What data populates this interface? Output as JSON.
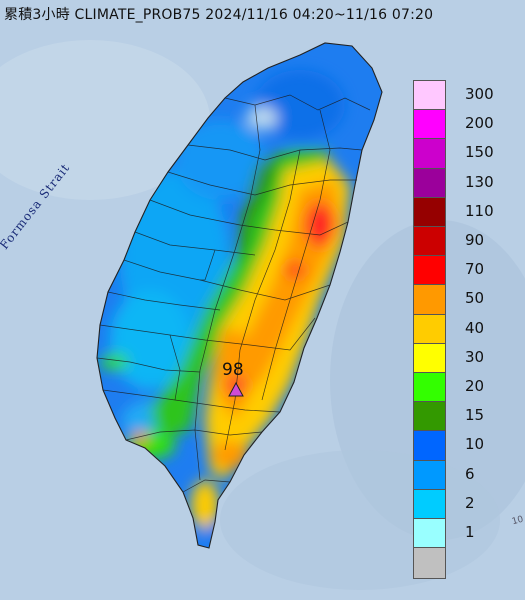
{
  "title": "累積3小時 CLIMATE_PROB75 2024/11/16 04:20~11/16 07:20",
  "sea_label": "Formosa Strait",
  "peak": {
    "value": "98",
    "marker": "triangle-marker",
    "color": "#d04bd6"
  },
  "edge_mark": "10",
  "legend": [
    {
      "label": "300",
      "color": "#ffc8ff"
    },
    {
      "label": "200",
      "color": "#ff00ff"
    },
    {
      "label": "150",
      "color": "#cc00cc"
    },
    {
      "label": "130",
      "color": "#9b009b"
    },
    {
      "label": "110",
      "color": "#960000"
    },
    {
      "label": "90",
      "color": "#cc0000"
    },
    {
      "label": "70",
      "color": "#ff0000"
    },
    {
      "label": "50",
      "color": "#ff9900"
    },
    {
      "label": "40",
      "color": "#ffcc00"
    },
    {
      "label": "30",
      "color": "#ffff00"
    },
    {
      "label": "20",
      "color": "#33ff00"
    },
    {
      "label": "15",
      "color": "#339900"
    },
    {
      "label": "10",
      "color": "#0066ff"
    },
    {
      "label": "6",
      "color": "#0099ff"
    },
    {
      "label": "2",
      "color": "#00ccff"
    },
    {
      "label": "1",
      "color": "#99ffff"
    },
    {
      "label": "",
      "color": "#c0c0c0"
    }
  ]
}
